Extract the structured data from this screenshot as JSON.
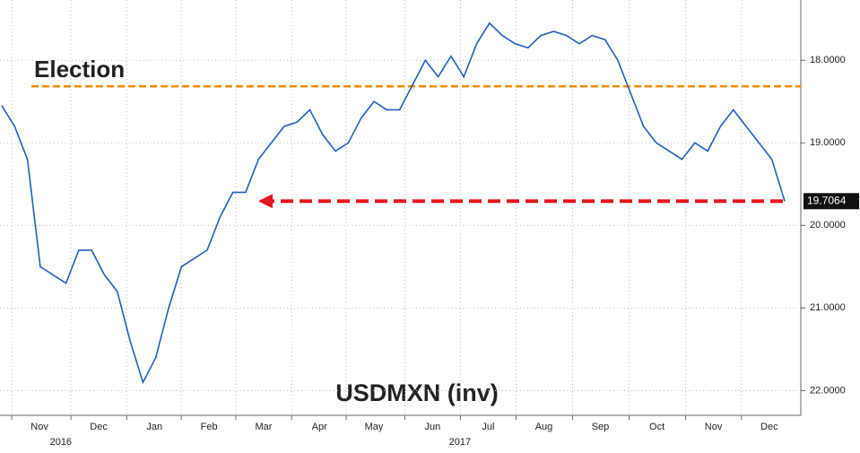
{
  "chart_data": {
    "type": "line",
    "title": "USDMXN (inv)",
    "series": [
      {
        "name": "USDMXN",
        "color": "#1f5fbf",
        "values": [
          18.55,
          18.8,
          19.2,
          20.5,
          20.6,
          20.7,
          20.3,
          20.3,
          20.6,
          20.8,
          21.4,
          21.9,
          21.6,
          21.0,
          20.5,
          20.4,
          20.3,
          19.9,
          19.6,
          19.6,
          19.2,
          19.0,
          18.8,
          18.75,
          18.6,
          18.9,
          19.1,
          19.0,
          18.7,
          18.5,
          18.6,
          18.6,
          18.3,
          18.0,
          18.2,
          17.95,
          18.2,
          17.8,
          17.55,
          17.7,
          17.8,
          17.85,
          17.7,
          17.65,
          17.7,
          17.8,
          17.7,
          17.75,
          18.0,
          18.4,
          18.8,
          19.0,
          19.1,
          19.2,
          19.0,
          19.1,
          18.8,
          18.6,
          18.8,
          19.0,
          19.2,
          19.7064
        ]
      }
    ],
    "xlim": [
      0,
      61
    ],
    "ylim": [
      22.3,
      17.27
    ],
    "yticks": [
      {
        "value": 18,
        "label": "18.0000"
      },
      {
        "value": 19,
        "label": "19.0000"
      },
      {
        "value": 20,
        "label": "20.0000"
      },
      {
        "value": 21,
        "label": "21.0000"
      },
      {
        "value": 22,
        "label": "22.0000"
      }
    ],
    "xticks": [
      {
        "value": 2.94,
        "label": "Nov"
      },
      {
        "value": 7.55,
        "label": "Dec"
      },
      {
        "value": 11.9,
        "label": "Jan"
      },
      {
        "value": 16.15,
        "label": "Feb"
      },
      {
        "value": 20.4,
        "label": "Mar"
      },
      {
        "value": 24.75,
        "label": "Apr"
      },
      {
        "value": 29.0,
        "label": "May"
      },
      {
        "value": 33.57,
        "label": "Jun"
      },
      {
        "value": 37.9,
        "label": "Jul"
      },
      {
        "value": 42.24,
        "label": "Aug"
      },
      {
        "value": 46.64,
        "label": "Sep"
      },
      {
        "value": 51.05,
        "label": "Oct"
      },
      {
        "value": 55.45,
        "label": "Nov"
      },
      {
        "value": 59.8,
        "label": "Dec"
      }
    ],
    "year_ticks": [
      {
        "value": 4.6,
        "label": "2016"
      },
      {
        "value": 35.7,
        "label": "2017"
      }
    ],
    "election": {
      "label": "Election",
      "value": 18.315,
      "color": "#f28c00"
    },
    "target": {
      "value": 19.7064,
      "color": "#e8141b"
    },
    "inverted": true,
    "grid": true
  }
}
